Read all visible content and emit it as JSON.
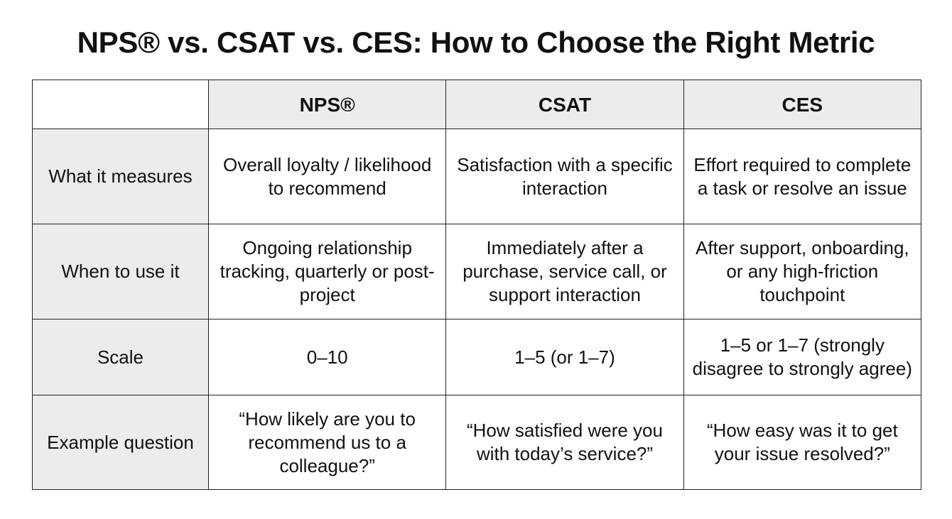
{
  "title": "NPS® vs. CSAT vs. CES: How to Choose the Right Metric",
  "table": {
    "columns": [
      "NPS®",
      "CSAT",
      "CES"
    ],
    "rows": [
      {
        "label": "What it measures",
        "cells": [
          "Overall loyalty / likelihood to recommend",
          "Satisfaction with a specific interaction",
          "Effort required to complete a task or resolve an issue"
        ]
      },
      {
        "label": "When to use it",
        "cells": [
          "Ongoing relationship tracking, quarterly or post-project",
          "Immediately after a purchase, service call, or support interaction",
          "After support, onboarding, or any high-friction touchpoint"
        ]
      },
      {
        "label": "Scale",
        "cells": [
          "0–10",
          "1–5 (or 1–7)",
          "1–5 or 1–7 (strongly disagree to strongly agree)"
        ]
      },
      {
        "label": "Example question",
        "cells": [
          "“How likely are you to recommend us to a colleague?”",
          "“How satisfied were you with today’s service?”",
          "“How easy was it to get your issue resolved?”"
        ]
      }
    ]
  }
}
